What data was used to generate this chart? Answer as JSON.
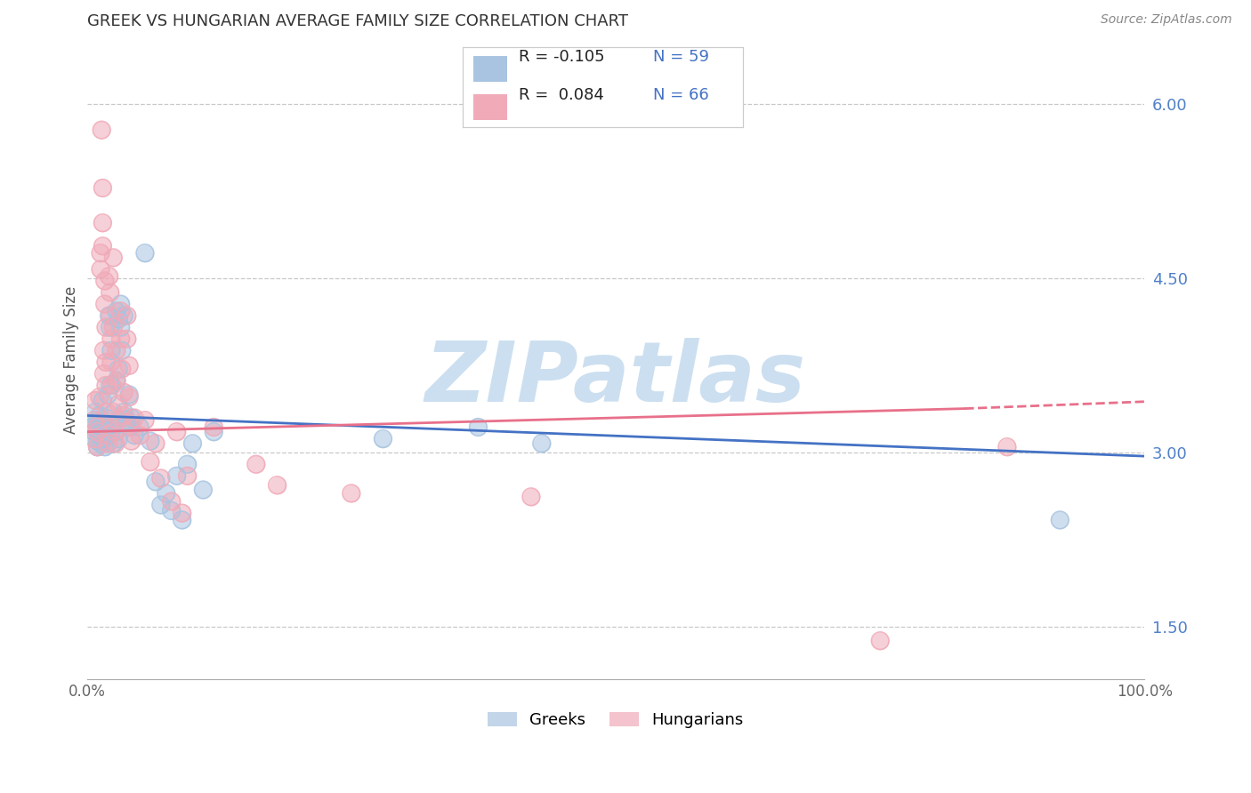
{
  "title": "GREEK VS HUNGARIAN AVERAGE FAMILY SIZE CORRELATION CHART",
  "source": "Source: ZipAtlas.com",
  "ylabel": "Average Family Size",
  "yticks_right": [
    1.5,
    3.0,
    4.5,
    6.0
  ],
  "xlim": [
    0.0,
    1.0
  ],
  "ylim": [
    1.05,
    6.55
  ],
  "greek_color": "#a8c4e0",
  "hungarian_color": "#f0aab8",
  "greek_line_color": "#4472c4",
  "hungarian_line_color": "#e8708a",
  "greek_R": -0.105,
  "greek_N": 59,
  "hungarian_R": 0.084,
  "hungarian_N": 66,
  "watermark": "ZIPatlas",
  "watermark_color": "#ccdff0",
  "greek_trend": [
    0.0,
    3.32,
    1.0,
    2.97
  ],
  "hungarian_trend_solid": [
    0.0,
    3.18,
    0.83,
    3.38
  ],
  "hungarian_trend_dash": [
    0.83,
    3.38,
    1.0,
    3.44
  ],
  "greek_scatter": [
    [
      0.005,
      3.22
    ],
    [
      0.007,
      3.18
    ],
    [
      0.008,
      3.35
    ],
    [
      0.01,
      3.28
    ],
    [
      0.01,
      3.1
    ],
    [
      0.01,
      3.05
    ],
    [
      0.012,
      3.32
    ],
    [
      0.012,
      3.15
    ],
    [
      0.013,
      3.08
    ],
    [
      0.013,
      3.22
    ],
    [
      0.015,
      3.45
    ],
    [
      0.015,
      3.12
    ],
    [
      0.015,
      3.25
    ],
    [
      0.016,
      3.18
    ],
    [
      0.017,
      3.05
    ],
    [
      0.018,
      3.3
    ],
    [
      0.018,
      3.2
    ],
    [
      0.02,
      3.5
    ],
    [
      0.02,
      3.15
    ],
    [
      0.021,
      4.18
    ],
    [
      0.022,
      3.58
    ],
    [
      0.022,
      4.08
    ],
    [
      0.023,
      3.88
    ],
    [
      0.025,
      3.22
    ],
    [
      0.025,
      3.08
    ],
    [
      0.027,
      3.18
    ],
    [
      0.028,
      4.22
    ],
    [
      0.028,
      3.62
    ],
    [
      0.03,
      4.15
    ],
    [
      0.03,
      3.72
    ],
    [
      0.03,
      3.28
    ],
    [
      0.03,
      3.12
    ],
    [
      0.032,
      4.28
    ],
    [
      0.032,
      4.08
    ],
    [
      0.033,
      3.88
    ],
    [
      0.035,
      4.18
    ],
    [
      0.035,
      3.35
    ],
    [
      0.038,
      3.28
    ],
    [
      0.04,
      3.5
    ],
    [
      0.04,
      3.22
    ],
    [
      0.042,
      3.3
    ],
    [
      0.045,
      3.15
    ],
    [
      0.05,
      3.22
    ],
    [
      0.055,
      4.72
    ],
    [
      0.06,
      3.1
    ],
    [
      0.065,
      2.75
    ],
    [
      0.07,
      2.55
    ],
    [
      0.075,
      2.65
    ],
    [
      0.08,
      2.5
    ],
    [
      0.085,
      2.8
    ],
    [
      0.09,
      2.42
    ],
    [
      0.095,
      2.9
    ],
    [
      0.1,
      3.08
    ],
    [
      0.11,
      2.68
    ],
    [
      0.12,
      3.18
    ],
    [
      0.28,
      3.12
    ],
    [
      0.37,
      3.22
    ],
    [
      0.43,
      3.08
    ],
    [
      0.92,
      2.42
    ]
  ],
  "hungarian_scatter": [
    [
      0.007,
      3.28
    ],
    [
      0.007,
      3.12
    ],
    [
      0.008,
      3.45
    ],
    [
      0.01,
      3.22
    ],
    [
      0.01,
      3.05
    ],
    [
      0.01,
      3.18
    ],
    [
      0.012,
      3.48
    ],
    [
      0.013,
      4.72
    ],
    [
      0.013,
      4.58
    ],
    [
      0.014,
      5.78
    ],
    [
      0.015,
      5.28
    ],
    [
      0.015,
      4.98
    ],
    [
      0.015,
      4.78
    ],
    [
      0.016,
      3.88
    ],
    [
      0.016,
      3.68
    ],
    [
      0.017,
      4.48
    ],
    [
      0.017,
      4.28
    ],
    [
      0.018,
      4.08
    ],
    [
      0.018,
      3.78
    ],
    [
      0.018,
      3.58
    ],
    [
      0.019,
      3.35
    ],
    [
      0.02,
      3.15
    ],
    [
      0.02,
      3.08
    ],
    [
      0.021,
      4.52
    ],
    [
      0.022,
      4.38
    ],
    [
      0.022,
      4.18
    ],
    [
      0.023,
      3.98
    ],
    [
      0.023,
      3.78
    ],
    [
      0.024,
      3.58
    ],
    [
      0.025,
      4.68
    ],
    [
      0.025,
      4.08
    ],
    [
      0.025,
      3.35
    ],
    [
      0.026,
      3.18
    ],
    [
      0.027,
      3.08
    ],
    [
      0.028,
      3.88
    ],
    [
      0.028,
      3.62
    ],
    [
      0.03,
      3.42
    ],
    [
      0.03,
      3.28
    ],
    [
      0.032,
      4.22
    ],
    [
      0.032,
      3.98
    ],
    [
      0.033,
      3.72
    ],
    [
      0.035,
      3.52
    ],
    [
      0.035,
      3.32
    ],
    [
      0.038,
      4.18
    ],
    [
      0.038,
      3.98
    ],
    [
      0.04,
      3.75
    ],
    [
      0.04,
      3.48
    ],
    [
      0.042,
      3.22
    ],
    [
      0.042,
      3.1
    ],
    [
      0.045,
      3.3
    ],
    [
      0.05,
      3.15
    ],
    [
      0.055,
      3.28
    ],
    [
      0.06,
      2.92
    ],
    [
      0.065,
      3.08
    ],
    [
      0.07,
      2.78
    ],
    [
      0.08,
      2.58
    ],
    [
      0.085,
      3.18
    ],
    [
      0.09,
      2.48
    ],
    [
      0.095,
      2.8
    ],
    [
      0.12,
      3.22
    ],
    [
      0.16,
      2.9
    ],
    [
      0.18,
      2.72
    ],
    [
      0.25,
      2.65
    ],
    [
      0.42,
      2.62
    ],
    [
      0.75,
      1.38
    ],
    [
      0.87,
      3.05
    ]
  ]
}
